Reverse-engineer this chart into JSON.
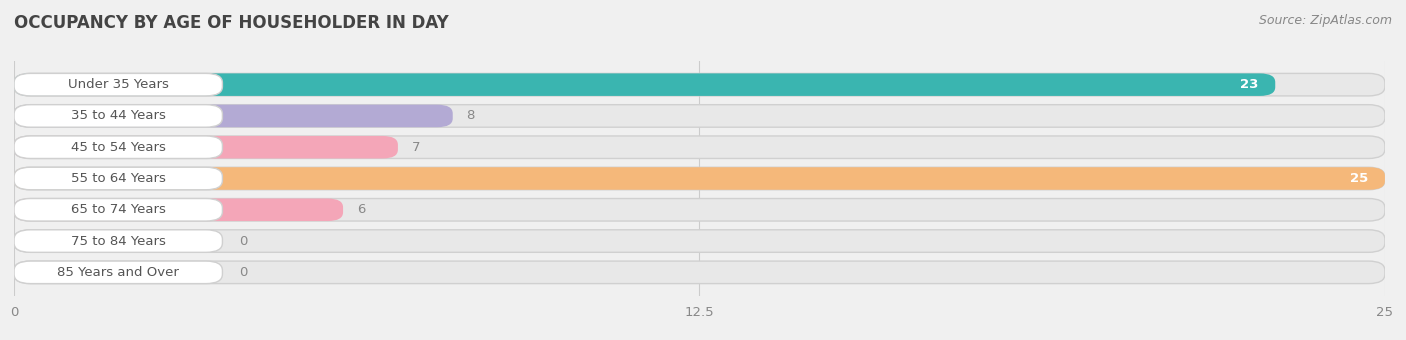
{
  "title": "OCCUPANCY BY AGE OF HOUSEHOLDER IN DAY",
  "source": "Source: ZipAtlas.com",
  "categories": [
    "Under 35 Years",
    "35 to 44 Years",
    "45 to 54 Years",
    "55 to 64 Years",
    "65 to 74 Years",
    "75 to 84 Years",
    "85 Years and Over"
  ],
  "values": [
    23,
    8,
    7,
    25,
    6,
    0,
    0
  ],
  "bar_colors": [
    "#3ab5b0",
    "#b3aad4",
    "#f4a6b8",
    "#f5b87a",
    "#f4a6b8",
    "#aac4e8",
    "#c8aad4"
  ],
  "xlim": [
    0,
    25
  ],
  "xticks": [
    0,
    12.5,
    25
  ],
  "bg_color": "#f0f0f0",
  "bar_bg_color": "#e8e8e8",
  "bar_bg_border": "#d0d0d0",
  "label_bg_color": "#ffffff",
  "title_fontsize": 12,
  "label_fontsize": 9.5,
  "source_fontsize": 9,
  "value_color_inside": "#ffffff",
  "value_color_outside": "#888888",
  "cat_label_color": "#555555"
}
